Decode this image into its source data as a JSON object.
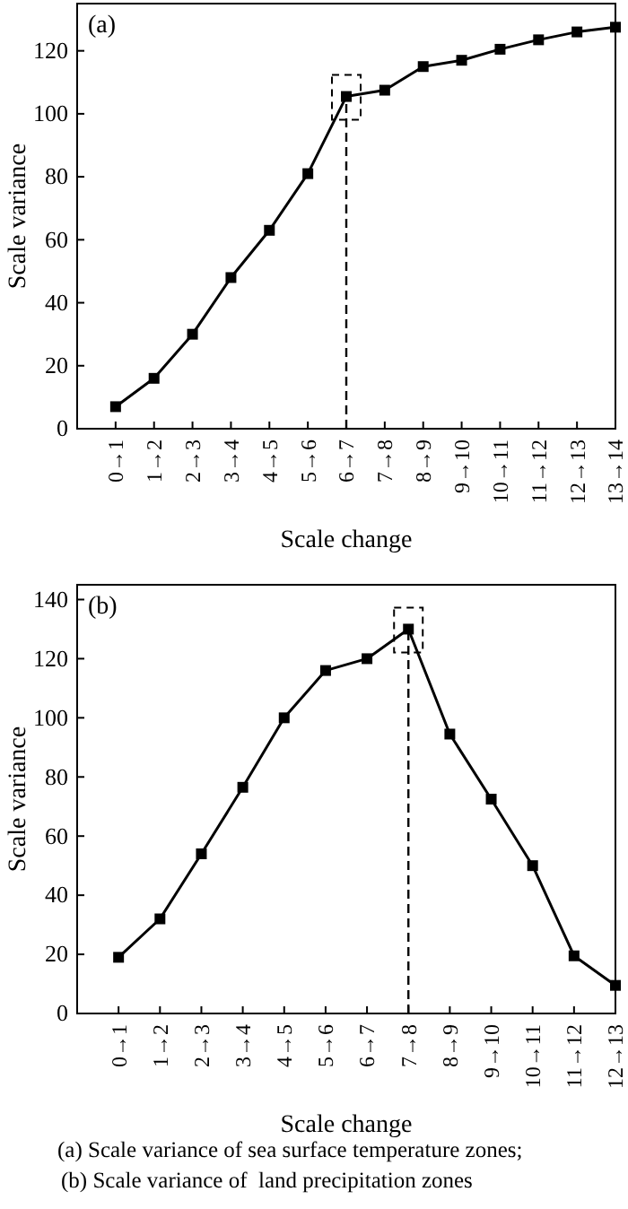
{
  "chart_data": [
    {
      "type": "line",
      "title": "(a)",
      "xlabel": "Scale change",
      "ylabel": "Scale variance",
      "categories": [
        "0→1",
        "1→2",
        "2→3",
        "3→4",
        "4→5",
        "5→6",
        "6→7",
        "7→8",
        "8→9",
        "9→10",
        "10→11",
        "11→12",
        "12→13",
        "13→14"
      ],
      "series": [
        {
          "color": "#000000",
          "values": [
            7,
            16,
            30,
            48,
            63,
            81,
            105.5,
            107.5,
            115,
            117,
            120.5,
            123.5,
            126,
            127.5
          ]
        }
      ],
      "ylim": [
        0,
        135
      ],
      "yticks": [
        0,
        20,
        40,
        60,
        80,
        100,
        120
      ],
      "marker": "square",
      "line_style": "solid",
      "grid": false,
      "ref_lines": [
        {
          "axis": "x",
          "value": "6→7",
          "line_style": "dashed",
          "color": "#000000"
        }
      ]
    },
    {
      "type": "line",
      "title": "(b)",
      "xlabel": "Scale change",
      "ylabel": "Scale variance",
      "categories": [
        "0→1",
        "1→2",
        "2→3",
        "3→4",
        "4→5",
        "5→6",
        "6→7",
        "7→8",
        "8→9",
        "9→10",
        "10→11",
        "11→12",
        "12→13"
      ],
      "series": [
        {
          "color": "#000000",
          "values": [
            19,
            32,
            54,
            76.5,
            100,
            116,
            120,
            130,
            94.5,
            72.5,
            50,
            19.5,
            9.5
          ]
        }
      ],
      "ylim": [
        0,
        145
      ],
      "yticks": [
        0,
        20,
        40,
        60,
        80,
        100,
        120,
        140
      ],
      "marker": "square",
      "line_style": "solid",
      "grid": false,
      "ref_lines": [
        {
          "axis": "x",
          "value": "7→8",
          "line_style": "dashed",
          "color": "#000000"
        }
      ],
      "annotations": [
        "(a) Scale variance of sea surface temperature zones;",
        "(b) Scale variance of  land precipitation zones"
      ]
    }
  ]
}
